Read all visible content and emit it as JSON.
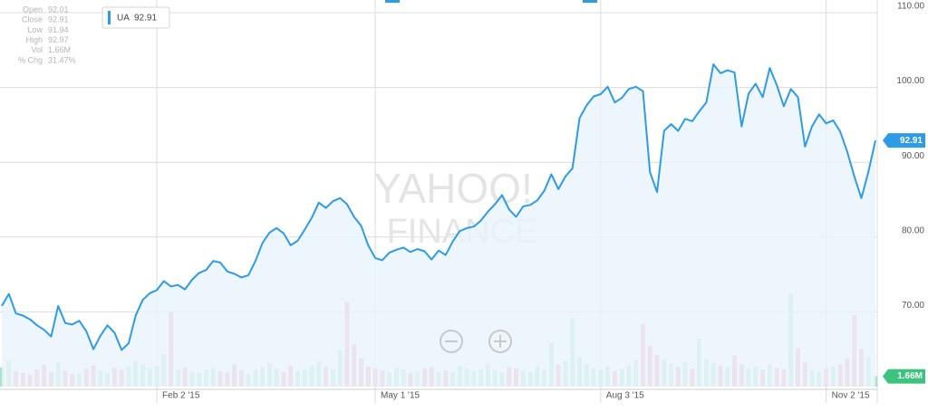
{
  "chart_data": {
    "type": "line",
    "watermark": [
      "YAHOO!",
      "FINANCE"
    ],
    "info": [
      {
        "label": "Open",
        "value": "92.01"
      },
      {
        "label": "Close",
        "value": "92.91"
      },
      {
        "label": "Low",
        "value": "91.94"
      },
      {
        "label": "High",
        "value": "92.97"
      },
      {
        "label": "Vol",
        "value": "1.66M"
      },
      {
        "label": "% Chg",
        "value": "31.47%"
      }
    ],
    "last_price": 92.91,
    "last_volume": {
      "value": 1.66,
      "label": "1.66M"
    },
    "categories": [
      null,
      null,
      null,
      null,
      null,
      null,
      null,
      null,
      null,
      null,
      null,
      null,
      null,
      null,
      null,
      null,
      null,
      null,
      null,
      null,
      null,
      null,
      "Feb 2 '15",
      null,
      null,
      null,
      null,
      null,
      null,
      null,
      null,
      null,
      null,
      null,
      null,
      null,
      null,
      null,
      null,
      null,
      null,
      null,
      null,
      null,
      null,
      null,
      null,
      null,
      null,
      null,
      null,
      null,
      null,
      "May 1 '15",
      null,
      null,
      null,
      null,
      null,
      null,
      null,
      null,
      null,
      null,
      null,
      null,
      null,
      null,
      null,
      null,
      null,
      null,
      null,
      null,
      null,
      null,
      null,
      null,
      null,
      null,
      null,
      null,
      null,
      null,
      null,
      "Aug 3 '15",
      null,
      null,
      null,
      null,
      null,
      null,
      null,
      null,
      null,
      null,
      null,
      null,
      null,
      null,
      null,
      null,
      null,
      null,
      null,
      null,
      null,
      null,
      null,
      null,
      null,
      null,
      null,
      null,
      null,
      null,
      null,
      "Nov 2 '15",
      null,
      null,
      null,
      null,
      null,
      null,
      null
    ],
    "series": [
      {
        "name": "UA",
        "color": "#2e9be6",
        "area_color": "#eaf4fc",
        "values": [
          70.8,
          72.4,
          69.8,
          69.5,
          69.0,
          68.2,
          67.6,
          66.7,
          70.8,
          68.5,
          68.3,
          68.8,
          67.4,
          65.0,
          66.8,
          68.2,
          67.2,
          64.9,
          65.8,
          69.5,
          71.6,
          72.5,
          72.9,
          74.1,
          73.4,
          73.6,
          73.0,
          74.3,
          75.2,
          75.6,
          76.8,
          76.6,
          75.4,
          75.1,
          74.6,
          74.9,
          76.8,
          79.2,
          80.6,
          81.2,
          80.5,
          78.9,
          79.5,
          81.0,
          82.6,
          84.6,
          83.9,
          84.8,
          85.2,
          84.4,
          82.7,
          81.5,
          78.9,
          77.2,
          76.9,
          77.9,
          78.3,
          78.6,
          78.0,
          78.4,
          78.1,
          77.0,
          78.2,
          77.6,
          79.4,
          80.8,
          81.2,
          81.4,
          82.2,
          83.4,
          84.4,
          85.6,
          83.7,
          82.7,
          84.1,
          84.3,
          84.9,
          86.2,
          88.4,
          86.4,
          88.1,
          89.2,
          95.9,
          97.6,
          98.8,
          99.1,
          100.1,
          98.0,
          98.6,
          99.8,
          100.1,
          99.5,
          88.7,
          86.0,
          94.2,
          95.1,
          94.2,
          95.8,
          95.5,
          96.8,
          98.0,
          103.1,
          101.9,
          102.3,
          102.0,
          94.8,
          99.2,
          100.5,
          98.7,
          102.6,
          100.3,
          97.5,
          99.8,
          98.7,
          92.1,
          94.8,
          96.4,
          95.2,
          95.6,
          94.1,
          91.4,
          88.1,
          85.2,
          88.7,
          92.91
        ]
      },
      {
        "name": "Volume",
        "axis": "y2",
        "up_color": "#a8e2c8",
        "down_color": "#f4a3ae",
        "values": [
          3.1,
          4.2,
          2.5,
          2.2,
          1.9,
          2.8,
          3.5,
          2.4,
          3.9,
          2.6,
          2.1,
          2.0,
          2.9,
          3.4,
          2.6,
          2.2,
          3.0,
          2.7,
          3.2,
          4.1,
          3.6,
          2.9,
          3.4,
          5.2,
          12.0,
          2.8,
          3.1,
          2.4,
          2.2,
          2.7,
          3.0,
          2.5,
          2.3,
          3.6,
          2.6,
          2.0,
          2.8,
          3.2,
          3.8,
          2.9,
          2.4,
          3.3,
          2.5,
          2.7,
          3.5,
          4.0,
          3.1,
          2.8,
          5.8,
          13.5,
          6.8,
          4.5,
          3.2,
          2.9,
          2.6,
          2.4,
          3.0,
          2.7,
          2.2,
          2.5,
          2.9,
          3.1,
          2.4,
          2.6,
          2.3,
          3.4,
          2.9,
          2.5,
          2.8,
          3.6,
          2.7,
          2.4,
          3.1,
          2.9,
          2.6,
          2.3,
          3.2,
          2.8,
          7.0,
          3.5,
          4.1,
          11.0,
          4.8,
          3.6,
          3.0,
          2.8,
          3.3,
          2.5,
          2.9,
          3.4,
          4.2,
          10.0,
          6.5,
          5.1,
          4.3,
          3.7,
          3.2,
          3.9,
          2.9,
          7.7,
          4.4,
          3.8,
          3.4,
          3.1,
          5.0,
          3.6,
          2.9,
          3.3,
          2.7,
          3.5,
          3.0,
          2.8,
          15.0,
          6.2,
          3.9,
          2.6,
          2.4,
          2.9,
          3.2,
          3.6,
          4.5,
          11.5,
          6.0,
          4.8,
          1.66
        ]
      }
    ],
    "ylim": [
      60,
      110
    ],
    "yticks": [
      {
        "value": 70,
        "label": "70.00"
      },
      {
        "value": 80,
        "label": "80.00"
      },
      {
        "value": 90,
        "label": "90.00"
      },
      {
        "value": 100,
        "label": "100.00"
      },
      {
        "value": 110,
        "label": "110.00"
      }
    ],
    "y2lim": [
      0,
      60
    ],
    "grid": true
  }
}
